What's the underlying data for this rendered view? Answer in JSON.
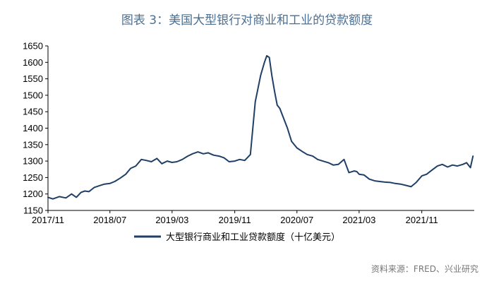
{
  "title": "图表 3：美国大型银行对商业和工业的贷款额度",
  "source": "资料来源：FRED、兴业研究",
  "colors": {
    "line": "#1f3f66",
    "title": "#4a6f93",
    "axis": "#000000"
  },
  "chart_data": {
    "type": "line",
    "title": "图表 3：美国大型银行对商业和工业的贷款额度",
    "xlabel": "",
    "ylabel": "",
    "ylim": [
      1150,
      1650
    ],
    "yticks": [
      1150,
      1200,
      1250,
      1300,
      1350,
      1400,
      1450,
      1500,
      1550,
      1600,
      1650
    ],
    "xlim": [
      "2017-11-01",
      "2022-05-25"
    ],
    "xticks": [
      "2017/11",
      "2018/07",
      "2019/03",
      "2019/11",
      "2020/07",
      "2021/03",
      "2021/11"
    ],
    "legend_position": "bottom",
    "grid": false,
    "series": [
      {
        "name": "大型银行商业和工业贷款额度（十亿美元）",
        "x": [
          "2017-11-01",
          "2017-11-20",
          "2017-12-15",
          "2018-01-10",
          "2018-02-01",
          "2018-02-20",
          "2018-03-10",
          "2018-03-25",
          "2018-04-10",
          "2018-05-01",
          "2018-05-20",
          "2018-06-10",
          "2018-07-01",
          "2018-07-20",
          "2018-08-10",
          "2018-09-01",
          "2018-09-20",
          "2018-10-10",
          "2018-11-01",
          "2018-11-20",
          "2018-12-10",
          "2019-01-01",
          "2019-01-20",
          "2019-02-10",
          "2019-03-01",
          "2019-03-20",
          "2019-04-10",
          "2019-05-01",
          "2019-05-20",
          "2019-06-10",
          "2019-07-01",
          "2019-07-20",
          "2019-08-10",
          "2019-09-01",
          "2019-09-20",
          "2019-10-10",
          "2019-11-01",
          "2019-11-20",
          "2019-12-10",
          "2020-01-01",
          "2020-01-20",
          "2020-02-10",
          "2020-02-25",
          "2020-03-05",
          "2020-03-15",
          "2020-03-25",
          "2020-04-05",
          "2020-04-15",
          "2020-04-25",
          "2020-05-05",
          "2020-05-25",
          "2020-06-10",
          "2020-07-01",
          "2020-07-20",
          "2020-08-10",
          "2020-09-01",
          "2020-09-20",
          "2020-10-10",
          "2020-11-01",
          "2020-11-20",
          "2020-12-10",
          "2021-01-01",
          "2021-01-20",
          "2021-02-10",
          "2021-02-20",
          "2021-03-01",
          "2021-03-20",
          "2021-04-10",
          "2021-05-01",
          "2021-05-20",
          "2021-06-10",
          "2021-07-01",
          "2021-07-20",
          "2021-08-10",
          "2021-09-01",
          "2021-09-20",
          "2021-10-10",
          "2021-11-01",
          "2021-11-20",
          "2021-12-10",
          "2022-01-01",
          "2022-01-20",
          "2022-02-10",
          "2022-03-01",
          "2022-03-20",
          "2022-04-10",
          "2022-04-25",
          "2022-05-10",
          "2022-05-20"
        ],
        "values": [
          1190,
          1185,
          1192,
          1188,
          1200,
          1190,
          1205,
          1209,
          1207,
          1220,
          1225,
          1230,
          1232,
          1238,
          1248,
          1260,
          1278,
          1285,
          1305,
          1302,
          1298,
          1308,
          1292,
          1300,
          1296,
          1298,
          1305,
          1315,
          1322,
          1328,
          1322,
          1325,
          1318,
          1315,
          1310,
          1298,
          1300,
          1305,
          1302,
          1320,
          1480,
          1560,
          1600,
          1620,
          1615,
          1560,
          1510,
          1470,
          1460,
          1440,
          1400,
          1360,
          1340,
          1330,
          1320,
          1315,
          1305,
          1300,
          1295,
          1288,
          1290,
          1305,
          1265,
          1270,
          1268,
          1260,
          1258,
          1245,
          1240,
          1238,
          1236,
          1235,
          1232,
          1230,
          1226,
          1222,
          1235,
          1255,
          1260,
          1272,
          1285,
          1290,
          1282,
          1288,
          1285,
          1290,
          1295,
          1280,
          1315
        ]
      }
    ]
  }
}
